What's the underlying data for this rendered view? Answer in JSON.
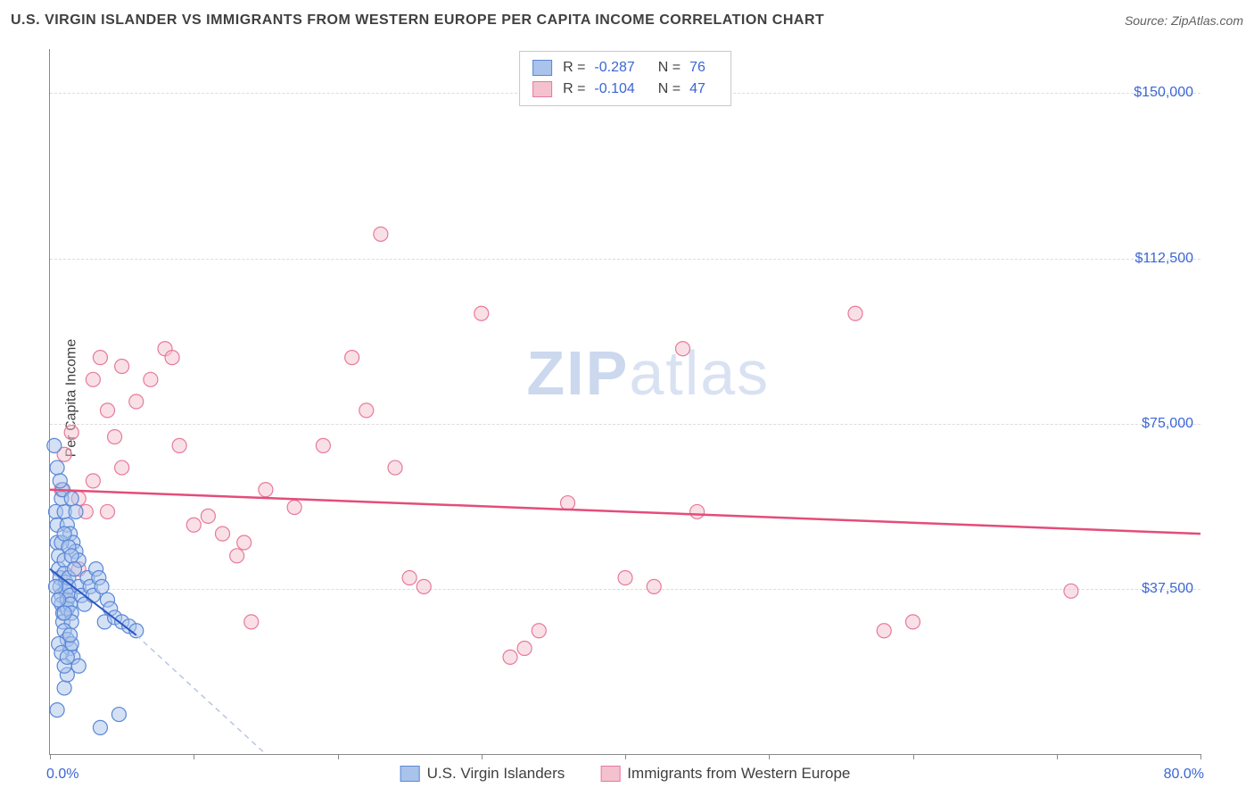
{
  "header": {
    "title": "U.S. VIRGIN ISLANDER VS IMMIGRANTS FROM WESTERN EUROPE PER CAPITA INCOME CORRELATION CHART",
    "source_prefix": "Source: ",
    "source_name": "ZipAtlas.com"
  },
  "watermark": {
    "zip": "ZIP",
    "atlas": "atlas"
  },
  "chart": {
    "type": "scatter",
    "xlim": [
      0,
      80
    ],
    "ylim": [
      0,
      160000
    ],
    "x_axis_label_left": "0.0%",
    "x_axis_label_right": "80.0%",
    "y_label": "Per Capita Income",
    "y_ticks": [
      {
        "v": 37500,
        "label": "$37,500"
      },
      {
        "v": 75000,
        "label": "$75,000"
      },
      {
        "v": 112500,
        "label": "$112,500"
      },
      {
        "v": 150000,
        "label": "$150,000"
      }
    ],
    "x_tick_positions": [
      0,
      10,
      20,
      30,
      40,
      50,
      60,
      70,
      80
    ],
    "grid_color": "#dcdcdc",
    "background_color": "#ffffff",
    "marker_radius": 8,
    "marker_opacity": 0.5,
    "series_a": {
      "name": "U.S. Virgin Islanders",
      "fill": "#a9c3eb",
      "stroke": "#5a87d6",
      "r_label": "R =",
      "r_value": "-0.287",
      "n_label": "N =",
      "n_value": "76",
      "trend": {
        "x1": 0,
        "y1": 42000,
        "x2": 6,
        "y2": 27000,
        "extend_x2": 15,
        "extend_y2": 0,
        "color": "#2a55c4",
        "dash_color": "#b8c6e0",
        "width": 2
      },
      "points": [
        [
          0.3,
          70000
        ],
        [
          0.4,
          55000
        ],
        [
          0.5,
          52000
        ],
        [
          0.5,
          48000
        ],
        [
          0.6,
          45000
        ],
        [
          0.6,
          42000
        ],
        [
          0.7,
          40000
        ],
        [
          0.7,
          38000
        ],
        [
          0.8,
          36000
        ],
        [
          0.8,
          34000
        ],
        [
          0.9,
          32000
        ],
        [
          0.9,
          30000
        ],
        [
          1.0,
          44000
        ],
        [
          1.0,
          41000
        ],
        [
          1.1,
          39000
        ],
        [
          1.1,
          37000
        ],
        [
          1.2,
          35000
        ],
        [
          1.2,
          33000
        ],
        [
          1.3,
          40000
        ],
        [
          1.3,
          38000
        ],
        [
          1.4,
          36000
        ],
        [
          1.4,
          34000
        ],
        [
          1.5,
          32000
        ],
        [
          1.5,
          30000
        ],
        [
          1.0,
          55000
        ],
        [
          1.2,
          52000
        ],
        [
          1.4,
          50000
        ],
        [
          1.6,
          48000
        ],
        [
          1.8,
          46000
        ],
        [
          2.0,
          44000
        ],
        [
          1.0,
          28000
        ],
        [
          1.2,
          26000
        ],
        [
          1.4,
          24000
        ],
        [
          1.6,
          22000
        ],
        [
          0.8,
          58000
        ],
        [
          0.9,
          60000
        ],
        [
          2.0,
          38000
        ],
        [
          2.2,
          36000
        ],
        [
          2.4,
          34000
        ],
        [
          2.6,
          40000
        ],
        [
          2.8,
          38000
        ],
        [
          3.0,
          36000
        ],
        [
          3.2,
          42000
        ],
        [
          3.4,
          40000
        ],
        [
          3.6,
          38000
        ],
        [
          3.8,
          30000
        ],
        [
          4.0,
          35000
        ],
        [
          4.2,
          33000
        ],
        [
          4.5,
          31000
        ],
        [
          5.0,
          30000
        ],
        [
          5.5,
          29000
        ],
        [
          6.0,
          28000
        ],
        [
          0.5,
          65000
        ],
        [
          0.7,
          62000
        ],
        [
          1.5,
          58000
        ],
        [
          1.8,
          55000
        ],
        [
          0.4,
          38000
        ],
        [
          0.6,
          35000
        ],
        [
          1.0,
          32000
        ],
        [
          1.5,
          25000
        ],
        [
          2.0,
          20000
        ],
        [
          3.5,
          6000
        ],
        [
          4.8,
          9000
        ],
        [
          0.5,
          10000
        ],
        [
          1.0,
          15000
        ],
        [
          1.2,
          18000
        ],
        [
          0.8,
          48000
        ],
        [
          1.0,
          50000
        ],
        [
          1.3,
          47000
        ],
        [
          1.5,
          45000
        ],
        [
          1.7,
          42000
        ],
        [
          0.6,
          25000
        ],
        [
          0.8,
          23000
        ],
        [
          1.0,
          20000
        ],
        [
          1.2,
          22000
        ],
        [
          1.4,
          27000
        ]
      ]
    },
    "series_b": {
      "name": "Immigrants from Western Europe",
      "fill": "#f4c2cf",
      "stroke": "#e77a9a",
      "r_label": "R =",
      "r_value": "-0.104",
      "n_label": "N =",
      "n_value": "47",
      "trend": {
        "x1": 0,
        "y1": 60000,
        "x2": 80,
        "y2": 50000,
        "color": "#e34d7a",
        "width": 2.5
      },
      "points": [
        [
          0.8,
          60000
        ],
        [
          1.5,
          73000
        ],
        [
          2.0,
          58000
        ],
        [
          1.0,
          68000
        ],
        [
          2.5,
          55000
        ],
        [
          3.0,
          85000
        ],
        [
          3.5,
          90000
        ],
        [
          4.0,
          78000
        ],
        [
          4.5,
          72000
        ],
        [
          5.0,
          88000
        ],
        [
          8.0,
          92000
        ],
        [
          8.5,
          90000
        ],
        [
          10.0,
          52000
        ],
        [
          11.0,
          54000
        ],
        [
          12.0,
          50000
        ],
        [
          13.0,
          45000
        ],
        [
          14.0,
          30000
        ],
        [
          13.5,
          48000
        ],
        [
          15.0,
          60000
        ],
        [
          17.0,
          56000
        ],
        [
          19.0,
          70000
        ],
        [
          21.0,
          90000
        ],
        [
          23.0,
          118000
        ],
        [
          25.0,
          40000
        ],
        [
          26.0,
          38000
        ],
        [
          22.0,
          78000
        ],
        [
          24.0,
          65000
        ],
        [
          30.0,
          100000
        ],
        [
          32.0,
          22000
        ],
        [
          33.0,
          24000
        ],
        [
          34.0,
          28000
        ],
        [
          36.0,
          57000
        ],
        [
          40.0,
          40000
        ],
        [
          42.0,
          38000
        ],
        [
          44.0,
          92000
        ],
        [
          45.0,
          55000
        ],
        [
          56.0,
          100000
        ],
        [
          58.0,
          28000
        ],
        [
          60.0,
          30000
        ],
        [
          71.0,
          37000
        ],
        [
          3.0,
          62000
        ],
        [
          4.0,
          55000
        ],
        [
          6.0,
          80000
        ],
        [
          7.0,
          85000
        ],
        [
          5.0,
          65000
        ],
        [
          9.0,
          70000
        ],
        [
          2.0,
          42000
        ]
      ]
    }
  },
  "bottom_legend": {
    "item_a": "U.S. Virgin Islanders",
    "item_b": "Immigrants from Western Europe"
  }
}
